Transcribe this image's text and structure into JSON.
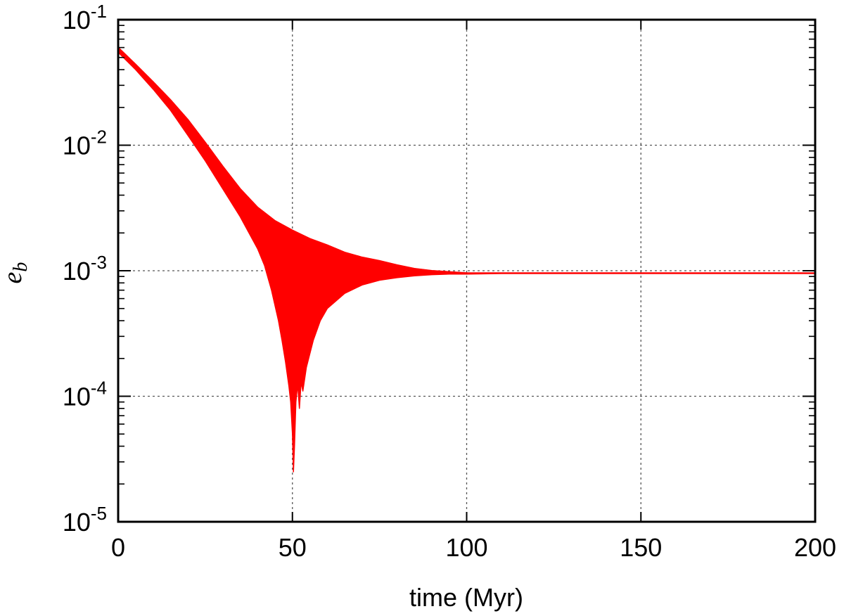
{
  "chart_data": {
    "type": "area",
    "xlabel": "time (Myr)",
    "ylabel": {
      "base": "e",
      "sub": "b"
    },
    "xlim": [
      0,
      200
    ],
    "ylim": [
      1e-05,
      0.1
    ],
    "yscale": "log",
    "grid": true,
    "series_color": "#ff0000",
    "x_ticks": [
      {
        "value": 0,
        "label": "0"
      },
      {
        "value": 50,
        "label": "50"
      },
      {
        "value": 100,
        "label": "100"
      },
      {
        "value": 150,
        "label": "150"
      },
      {
        "value": 200,
        "label": "200"
      }
    ],
    "y_ticks": [
      {
        "value": 1e-05,
        "base": "10",
        "exp": "-5"
      },
      {
        "value": 0.0001,
        "base": "10",
        "exp": "-4"
      },
      {
        "value": 0.001,
        "base": "10",
        "exp": "-3"
      },
      {
        "value": 0.01,
        "base": "10",
        "exp": "-2"
      },
      {
        "value": 0.1,
        "base": "10",
        "exp": "-1"
      }
    ],
    "series": [
      {
        "upper_envelope": {
          "x": [
            0,
            5,
            10,
            15,
            20,
            25,
            30,
            35,
            40,
            45,
            50,
            55,
            60,
            65,
            70,
            75,
            80,
            85,
            90,
            95,
            100,
            110,
            120,
            140,
            160,
            180,
            200
          ],
          "y": [
            0.06,
            0.044,
            0.032,
            0.023,
            0.016,
            0.0105,
            0.0068,
            0.0045,
            0.0032,
            0.0025,
            0.0021,
            0.0018,
            0.0016,
            0.0014,
            0.00128,
            0.0012,
            0.00111,
            0.00104,
            0.001,
            0.00098,
            0.00096,
            0.00096,
            0.00096,
            0.00096,
            0.00096,
            0.00096,
            0.00096
          ]
        },
        "lower_envelope": {
          "x": [
            0,
            5,
            10,
            15,
            20,
            25,
            30,
            35,
            40,
            42,
            44,
            46,
            47,
            48,
            49,
            49.5,
            50,
            50.3,
            50.6,
            51,
            51.5,
            52,
            52.5,
            53,
            54,
            56,
            58,
            60,
            65,
            70,
            75,
            80,
            85,
            90,
            95,
            100,
            110,
            120,
            140,
            160,
            180,
            200
          ],
          "y": [
            0.055,
            0.04,
            0.028,
            0.019,
            0.012,
            0.0075,
            0.0045,
            0.0027,
            0.0015,
            0.0011,
            0.0007,
            0.0004,
            0.00028,
            0.00019,
            0.00012,
            9e-05,
            5e-05,
            2.5e-05,
            4e-05,
            9e-05,
            0.000125,
            8e-05,
            0.00013,
            0.00011,
            0.00017,
            0.00028,
            0.0004,
            0.0005,
            0.00066,
            0.00077,
            0.00084,
            0.00088,
            0.00091,
            0.00093,
            0.00094,
            0.00094,
            0.00095,
            0.00095,
            0.00095,
            0.00095,
            0.00095,
            0.00095
          ]
        }
      }
    ]
  }
}
